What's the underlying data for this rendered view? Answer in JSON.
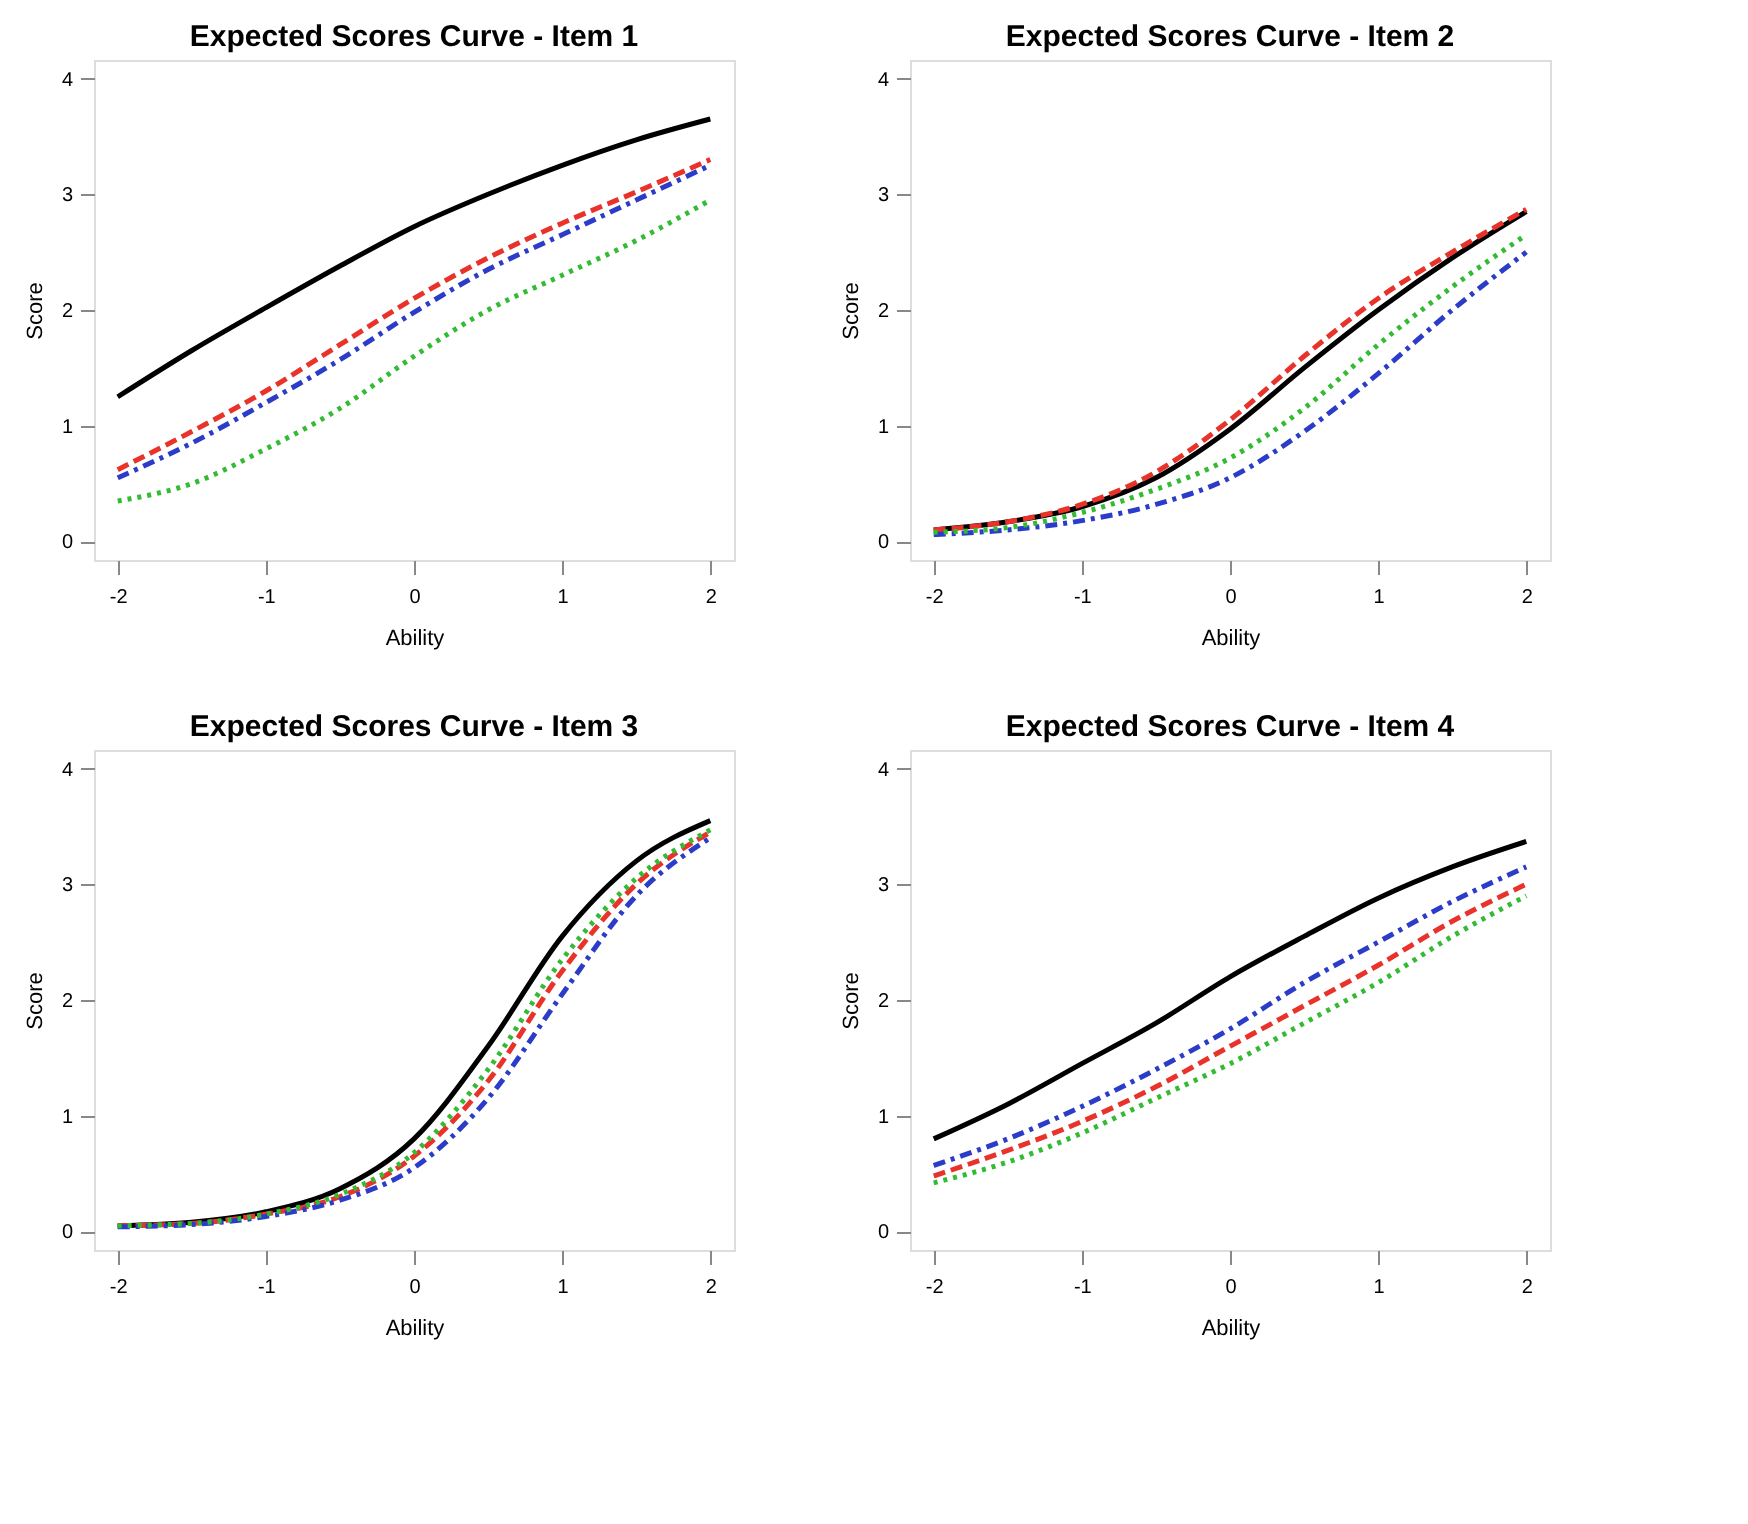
{
  "chart_data": [
    {
      "type": "line",
      "title": "Expected Scores Curve - Item  1",
      "xlabel": "Ability",
      "ylabel": "Score",
      "x": [
        -2,
        -1.5,
        -1,
        -0.5,
        0,
        0.5,
        1,
        1.5,
        2
      ],
      "xlim": [
        -2.16,
        2.16
      ],
      "ylim": [
        -0.16,
        4.16
      ],
      "xticks": [
        -2,
        -1,
        0,
        1,
        2
      ],
      "yticks": [
        0,
        1,
        2,
        3,
        4
      ],
      "grid": false,
      "series": [
        {
          "color": "#000000",
          "line_style": "solid",
          "values": [
            1.25,
            1.65,
            2.02,
            2.38,
            2.72,
            3.0,
            3.25,
            3.47,
            3.65
          ]
        },
        {
          "color": "#e8322a",
          "line_style": "dashed",
          "values": [
            0.62,
            0.95,
            1.3,
            1.7,
            2.1,
            2.45,
            2.75,
            3.02,
            3.3
          ]
        },
        {
          "color": "#2b3cc8",
          "line_style": "dashed",
          "values": [
            0.55,
            0.85,
            1.2,
            1.57,
            1.98,
            2.35,
            2.65,
            2.95,
            3.25
          ]
        },
        {
          "color": "#33bb33",
          "line_style": "dotted",
          "values": [
            0.35,
            0.5,
            0.8,
            1.15,
            1.6,
            2.0,
            2.3,
            2.6,
            2.95
          ]
        }
      ]
    },
    {
      "type": "line",
      "title": "Expected Scores Curve - Item  2",
      "xlabel": "Ability",
      "ylabel": "Score",
      "x": [
        -2,
        -1.5,
        -1,
        -0.5,
        0,
        0.5,
        1,
        1.5,
        2
      ],
      "xlim": [
        -2.16,
        2.16
      ],
      "ylim": [
        -0.16,
        4.16
      ],
      "xticks": [
        -2,
        -1,
        0,
        1,
        2
      ],
      "yticks": [
        0,
        1,
        2,
        3,
        4
      ],
      "grid": false,
      "series": [
        {
          "color": "#000000",
          "line_style": "solid",
          "values": [
            0.1,
            0.17,
            0.3,
            0.55,
            0.97,
            1.5,
            2.0,
            2.45,
            2.85
          ]
        },
        {
          "color": "#e8322a",
          "line_style": "dashed",
          "values": [
            0.1,
            0.17,
            0.32,
            0.6,
            1.05,
            1.6,
            2.1,
            2.5,
            2.87
          ]
        },
        {
          "color": "#2b3cc8",
          "line_style": "dashed",
          "values": [
            0.06,
            0.1,
            0.18,
            0.32,
            0.55,
            0.95,
            1.45,
            2.0,
            2.5
          ]
        },
        {
          "color": "#33bb33",
          "line_style": "dotted",
          "values": [
            0.08,
            0.12,
            0.25,
            0.45,
            0.72,
            1.15,
            1.7,
            2.2,
            2.65
          ]
        }
      ]
    },
    {
      "type": "line",
      "title": "Expected Scores Curve - Item  3",
      "xlabel": "Ability",
      "ylabel": "Score",
      "x": [
        -2,
        -1.5,
        -1,
        -0.5,
        0,
        0.5,
        1,
        1.5,
        2
      ],
      "xlim": [
        -2.16,
        2.16
      ],
      "ylim": [
        -0.16,
        4.16
      ],
      "xticks": [
        -2,
        -1,
        0,
        1,
        2
      ],
      "yticks": [
        0,
        1,
        2,
        3,
        4
      ],
      "grid": false,
      "series": [
        {
          "color": "#000000",
          "line_style": "solid",
          "values": [
            0.05,
            0.08,
            0.17,
            0.37,
            0.8,
            1.6,
            2.55,
            3.2,
            3.55
          ]
        },
        {
          "color": "#e8322a",
          "line_style": "dashed",
          "values": [
            0.05,
            0.07,
            0.15,
            0.3,
            0.65,
            1.3,
            2.25,
            3.0,
            3.45
          ]
        },
        {
          "color": "#2b3cc8",
          "line_style": "dashed",
          "values": [
            0.04,
            0.06,
            0.13,
            0.27,
            0.55,
            1.15,
            2.05,
            2.9,
            3.4
          ]
        },
        {
          "color": "#33bb33",
          "line_style": "dotted",
          "values": [
            0.05,
            0.07,
            0.15,
            0.32,
            0.68,
            1.4,
            2.35,
            3.05,
            3.47
          ]
        }
      ]
    },
    {
      "type": "line",
      "title": "Expected Scores Curve - Item  4",
      "xlabel": "Ability",
      "ylabel": "Score",
      "x": [
        -2,
        -1.5,
        -1,
        -0.5,
        0,
        0.5,
        1,
        1.5,
        2
      ],
      "xlim": [
        -2.16,
        2.16
      ],
      "ylim": [
        -0.16,
        4.16
      ],
      "xticks": [
        -2,
        -1,
        0,
        1,
        2
      ],
      "yticks": [
        0,
        1,
        2,
        3,
        4
      ],
      "grid": false,
      "series": [
        {
          "color": "#000000",
          "line_style": "solid",
          "values": [
            0.8,
            1.1,
            1.45,
            1.8,
            2.2,
            2.55,
            2.88,
            3.15,
            3.37
          ]
        },
        {
          "color": "#e8322a",
          "line_style": "dashed",
          "values": [
            0.48,
            0.7,
            0.95,
            1.25,
            1.6,
            1.95,
            2.3,
            2.68,
            3.0
          ]
        },
        {
          "color": "#2b3cc8",
          "line_style": "dashed",
          "values": [
            0.57,
            0.8,
            1.08,
            1.4,
            1.75,
            2.15,
            2.5,
            2.85,
            3.15
          ]
        },
        {
          "color": "#33bb33",
          "line_style": "dotted",
          "values": [
            0.42,
            0.6,
            0.85,
            1.15,
            1.45,
            1.8,
            2.15,
            2.55,
            2.9
          ]
        }
      ]
    }
  ]
}
